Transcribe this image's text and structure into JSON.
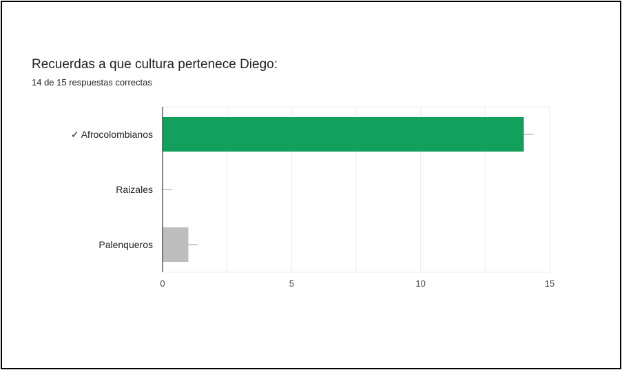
{
  "question": {
    "title": "Recuerdas a que cultura pertenece Diego:",
    "summary": "14 de 15 respuestas correctas"
  },
  "chart_data": {
    "type": "bar",
    "orientation": "horizontal",
    "categories": [
      "✓ Afrocolombianos",
      "Raizales",
      "Palenqueros"
    ],
    "values": [
      14,
      0,
      1
    ],
    "bar_colors": [
      "#12a05c",
      "#bdbdbd",
      "#bdbdbd"
    ],
    "correct_index": 0,
    "xlim": [
      0,
      15
    ],
    "xticks": [
      0,
      5,
      10,
      15
    ],
    "grid": true,
    "legend": "none",
    "title": "",
    "xlabel": "",
    "ylabel": ""
  }
}
